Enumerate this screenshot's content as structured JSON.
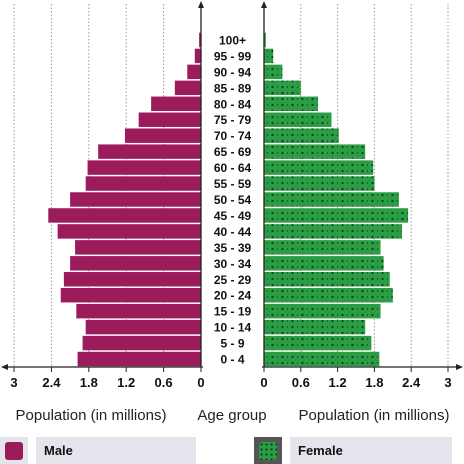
{
  "chart_data": {
    "type": "bar",
    "orientation": "horizontal",
    "layout": "population-pyramid",
    "categories": [
      "0 - 4",
      "5 - 9",
      "10 - 14",
      "15 - 19",
      "20 - 24",
      "25 - 29",
      "30 - 34",
      "35 - 39",
      "40 - 44",
      "45 - 49",
      "50 - 54",
      "55 - 59",
      "60 - 64",
      "65 - 69",
      "70 - 74",
      "75 - 79",
      "80 - 84",
      "85 - 89",
      "90 - 94",
      "95 - 99",
      "100+"
    ],
    "series": [
      {
        "name": "Male",
        "color": "#9b1b5c",
        "values": [
          1.98,
          1.9,
          1.85,
          2.0,
          2.25,
          2.2,
          2.1,
          2.02,
          2.3,
          2.45,
          2.1,
          1.85,
          1.82,
          1.65,
          1.22,
          1.0,
          0.8,
          0.42,
          0.22,
          0.1,
          0.03
        ]
      },
      {
        "name": "Female",
        "color": "#2a9d45",
        "values": [
          1.88,
          1.75,
          1.65,
          1.9,
          2.1,
          2.05,
          1.95,
          1.9,
          2.25,
          2.35,
          2.2,
          1.8,
          1.78,
          1.65,
          1.22,
          1.1,
          0.88,
          0.6,
          0.3,
          0.15,
          0.03
        ]
      }
    ],
    "xlabel_left": "Population (in millions)",
    "xlabel_center": "Age group",
    "xlabel_right": "Population (in millions)",
    "xlim": [
      0,
      3
    ],
    "x_ticks": [
      "3",
      "2.4",
      "1.8",
      "1.2",
      "0.6",
      "0",
      "0",
      "0.6",
      "1.2",
      "1.8",
      "2.4",
      "3"
    ],
    "grid": true,
    "legend": [
      {
        "label": "Male",
        "color": "#9b1b5c"
      },
      {
        "label": "Female",
        "color": "#2a9d45"
      }
    ],
    "legend_position": "bottom"
  }
}
